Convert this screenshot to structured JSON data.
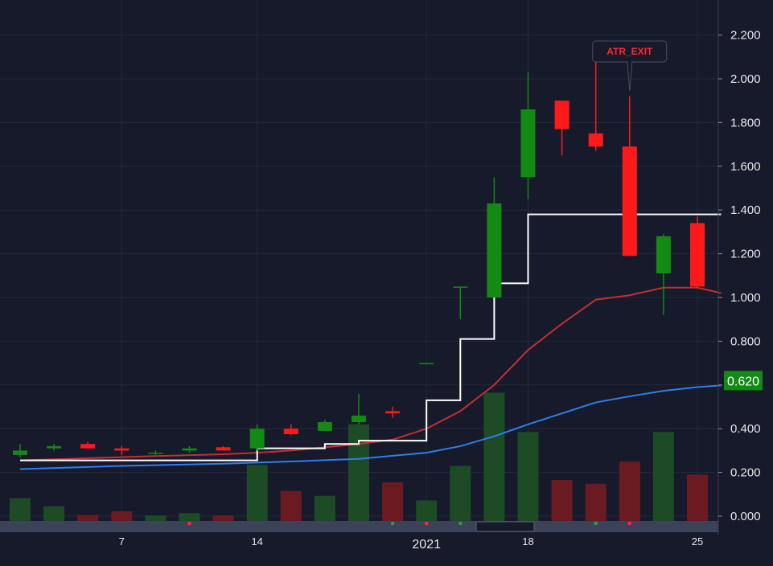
{
  "chart_data": {
    "type": "candlestick",
    "y_axis": {
      "ticks": [
        "2.200",
        "2.000",
        "1.800",
        "1.600",
        "1.400",
        "1.200",
        "1.000",
        "0.800",
        "0.600",
        "0.400",
        "0.200",
        "0.000"
      ],
      "tick_values": [
        2.2,
        2.0,
        1.8,
        1.6,
        1.4,
        1.2,
        1.0,
        0.8,
        0.6,
        0.4,
        0.2,
        0.0
      ],
      "range": [
        0.0,
        2.33
      ],
      "position": "right"
    },
    "x_axis": {
      "labels": [
        "7",
        "14",
        "2021",
        "18",
        "25"
      ],
      "label_index": [
        3,
        7,
        12,
        15,
        20
      ]
    },
    "grid": true,
    "price_label": {
      "text": "0.620",
      "value": 0.62,
      "color": "#138a13"
    },
    "annotation": {
      "text": "ATR_EXIT",
      "candle_index": 18,
      "color": "#ff2a2a"
    },
    "candles": [
      {
        "open": 0.28,
        "high": 0.33,
        "low": 0.27,
        "close": 0.3
      },
      {
        "open": 0.31,
        "high": 0.33,
        "low": 0.3,
        "close": 0.32
      },
      {
        "open": 0.33,
        "high": 0.34,
        "low": 0.31,
        "close": 0.31
      },
      {
        "open": 0.31,
        "high": 0.32,
        "low": 0.28,
        "close": 0.3
      },
      {
        "open": 0.29,
        "high": 0.3,
        "low": 0.28,
        "close": 0.29
      },
      {
        "open": 0.3,
        "high": 0.32,
        "low": 0.29,
        "close": 0.31
      },
      {
        "open": 0.315,
        "high": 0.32,
        "low": 0.3,
        "close": 0.3
      },
      {
        "open": 0.31,
        "high": 0.42,
        "low": 0.3,
        "close": 0.4
      },
      {
        "open": 0.4,
        "high": 0.42,
        "low": 0.37,
        "close": 0.375
      },
      {
        "open": 0.39,
        "high": 0.44,
        "low": 0.39,
        "close": 0.43
      },
      {
        "open": 0.43,
        "high": 0.56,
        "low": 0.42,
        "close": 0.46
      },
      {
        "open": 0.48,
        "high": 0.5,
        "low": 0.45,
        "close": 0.47
      },
      {
        "open": 0.7,
        "high": 0.7,
        "low": 0.7,
        "close": 0.7
      },
      {
        "open": 1.05,
        "high": 1.05,
        "low": 0.9,
        "close": 1.05
      },
      {
        "open": 1.0,
        "high": 1.55,
        "low": 1.0,
        "close": 1.43
      },
      {
        "open": 1.55,
        "high": 2.03,
        "low": 1.45,
        "close": 1.86
      },
      {
        "open": 1.9,
        "high": 1.9,
        "low": 1.65,
        "close": 1.77
      },
      {
        "open": 1.75,
        "high": 2.1,
        "low": 1.67,
        "close": 1.69
      },
      {
        "open": 1.69,
        "high": 1.92,
        "low": 1.19,
        "close": 1.19
      },
      {
        "open": 1.11,
        "high": 1.29,
        "low": 0.92,
        "close": 1.28
      },
      {
        "open": 1.34,
        "high": 1.37,
        "low": 1.04,
        "close": 1.05
      }
    ],
    "volume": {
      "values": [
        0.082,
        0.045,
        0.006,
        0.022,
        0.003,
        0.014,
        0.003,
        0.235,
        0.115,
        0.093,
        0.42,
        0.155,
        0.072,
        0.23,
        0.565,
        0.385,
        0.165,
        0.148,
        0.25,
        0.385,
        0.19
      ],
      "up_color": "#1c4b26",
      "down_color": "#6b1a22"
    },
    "series": [
      {
        "type": "line",
        "color": "#c03030",
        "x": [
          0,
          2,
          4,
          6,
          7,
          8,
          9,
          10,
          11,
          12,
          13,
          14,
          15,
          16,
          17,
          18,
          19,
          20,
          20.7
        ],
        "y": [
          0.255,
          0.265,
          0.275,
          0.283,
          0.29,
          0.3,
          0.315,
          0.33,
          0.35,
          0.4,
          0.48,
          0.6,
          0.76,
          0.88,
          0.99,
          1.01,
          1.045,
          1.045,
          1.02
        ]
      },
      {
        "type": "line",
        "color": "#2e7fe8",
        "x": [
          0,
          3,
          6,
          8,
          10,
          12,
          13,
          14,
          15,
          16,
          17,
          18,
          19,
          20,
          20.7
        ],
        "y": [
          0.215,
          0.23,
          0.24,
          0.25,
          0.262,
          0.29,
          0.32,
          0.365,
          0.42,
          0.47,
          0.52,
          0.548,
          0.573,
          0.59,
          0.598
        ]
      },
      {
        "type": "step",
        "color": "#ffffff",
        "x": [
          0,
          7,
          9,
          10,
          12,
          13,
          14,
          15,
          20.7
        ],
        "y": [
          0.255,
          0.31,
          0.33,
          0.345,
          0.53,
          0.81,
          1.065,
          1.38,
          1.38
        ]
      }
    ],
    "bottom_markers": [
      {
        "index": 5,
        "color": "#ff2a2a"
      },
      {
        "index": 11,
        "color": "#2aa52a"
      },
      {
        "index": 12,
        "color": "#ff2a2a"
      },
      {
        "index": 13,
        "color": "#2aa52a"
      },
      {
        "index": 17,
        "color": "#2aa52a"
      },
      {
        "index": 18,
        "color": "#ff2a2a"
      }
    ],
    "colors": {
      "background": "#161a2b",
      "grid": "#232a3d",
      "up": "#138a13",
      "down": "#ff1a1a",
      "axis_text": "#e8e8e8"
    }
  }
}
